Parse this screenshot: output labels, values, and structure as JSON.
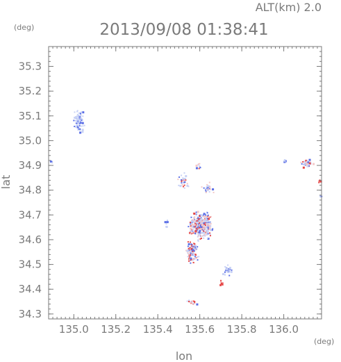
{
  "chart_data": {
    "type": "scatter",
    "altitude_label": "ALT(km) 2.0",
    "timestamp": "2013/09/08 01:38:41",
    "xlabel": "lon",
    "ylabel": "lat",
    "x_unit": "(deg)",
    "y_unit": "(deg)",
    "xlim": [
      134.88,
      136.18
    ],
    "ylim": [
      34.28,
      35.38
    ],
    "x_ticks": [
      135.0,
      135.2,
      135.4,
      135.6,
      135.8,
      136.0
    ],
    "x_tick_labels": [
      "135.0",
      "135.2",
      "135.4",
      "135.6",
      "135.8",
      "136.0"
    ],
    "y_ticks": [
      34.3,
      34.4,
      34.5,
      34.6,
      34.7,
      34.8,
      34.9,
      35.0,
      35.1,
      35.2,
      35.3
    ],
    "y_tick_labels": [
      "34.3",
      "34.4",
      "34.5",
      "34.6",
      "34.7",
      "34.8",
      "34.9",
      "35.0",
      "35.1",
      "35.2",
      "35.3"
    ],
    "minor_tick_step": 0.02,
    "colors": {
      "approaching": "#5a6ee6",
      "receding": "#e64646",
      "near_zero": "#c8d2f5",
      "axis": "#7a7a7a"
    },
    "clusters": [
      {
        "lon": 135.02,
        "lat": 35.08,
        "dlon": 0.03,
        "dlat": 0.06,
        "count": 90,
        "mix": "blue_light"
      },
      {
        "lon": 134.89,
        "lat": 34.92,
        "dlon": 0.01,
        "dlat": 0.01,
        "count": 6,
        "mix": "blue"
      },
      {
        "lon": 135.52,
        "lat": 34.84,
        "dlon": 0.03,
        "dlat": 0.04,
        "count": 35,
        "mix": "mixed"
      },
      {
        "lon": 135.59,
        "lat": 34.9,
        "dlon": 0.02,
        "dlat": 0.02,
        "count": 10,
        "mix": "mixed"
      },
      {
        "lon": 135.64,
        "lat": 34.81,
        "dlon": 0.04,
        "dlat": 0.03,
        "count": 30,
        "mix": "mixed"
      },
      {
        "lon": 135.6,
        "lat": 34.66,
        "dlon": 0.07,
        "dlat": 0.07,
        "count": 380,
        "mix": "mixed"
      },
      {
        "lon": 135.56,
        "lat": 34.55,
        "dlon": 0.04,
        "dlat": 0.06,
        "count": 110,
        "mix": "mixed"
      },
      {
        "lon": 135.44,
        "lat": 34.67,
        "dlon": 0.01,
        "dlat": 0.02,
        "count": 8,
        "mix": "blue"
      },
      {
        "lon": 135.73,
        "lat": 34.48,
        "dlon": 0.03,
        "dlat": 0.03,
        "count": 35,
        "mix": "blue_light"
      },
      {
        "lon": 135.7,
        "lat": 34.43,
        "dlon": 0.01,
        "dlat": 0.02,
        "count": 8,
        "mix": "red"
      },
      {
        "lon": 135.55,
        "lat": 34.35,
        "dlon": 0.05,
        "dlat": 0.01,
        "count": 18,
        "mix": "mixed"
      },
      {
        "lon": 136.0,
        "lat": 34.92,
        "dlon": 0.01,
        "dlat": 0.01,
        "count": 10,
        "mix": "blue"
      },
      {
        "lon": 136.11,
        "lat": 34.91,
        "dlon": 0.04,
        "dlat": 0.02,
        "count": 45,
        "mix": "mixed"
      },
      {
        "lon": 136.17,
        "lat": 34.84,
        "dlon": 0.01,
        "dlat": 0.01,
        "count": 6,
        "mix": "red"
      },
      {
        "lon": 136.17,
        "lat": 34.78,
        "dlon": 0.01,
        "dlat": 0.01,
        "count": 4,
        "mix": "blue"
      }
    ]
  }
}
